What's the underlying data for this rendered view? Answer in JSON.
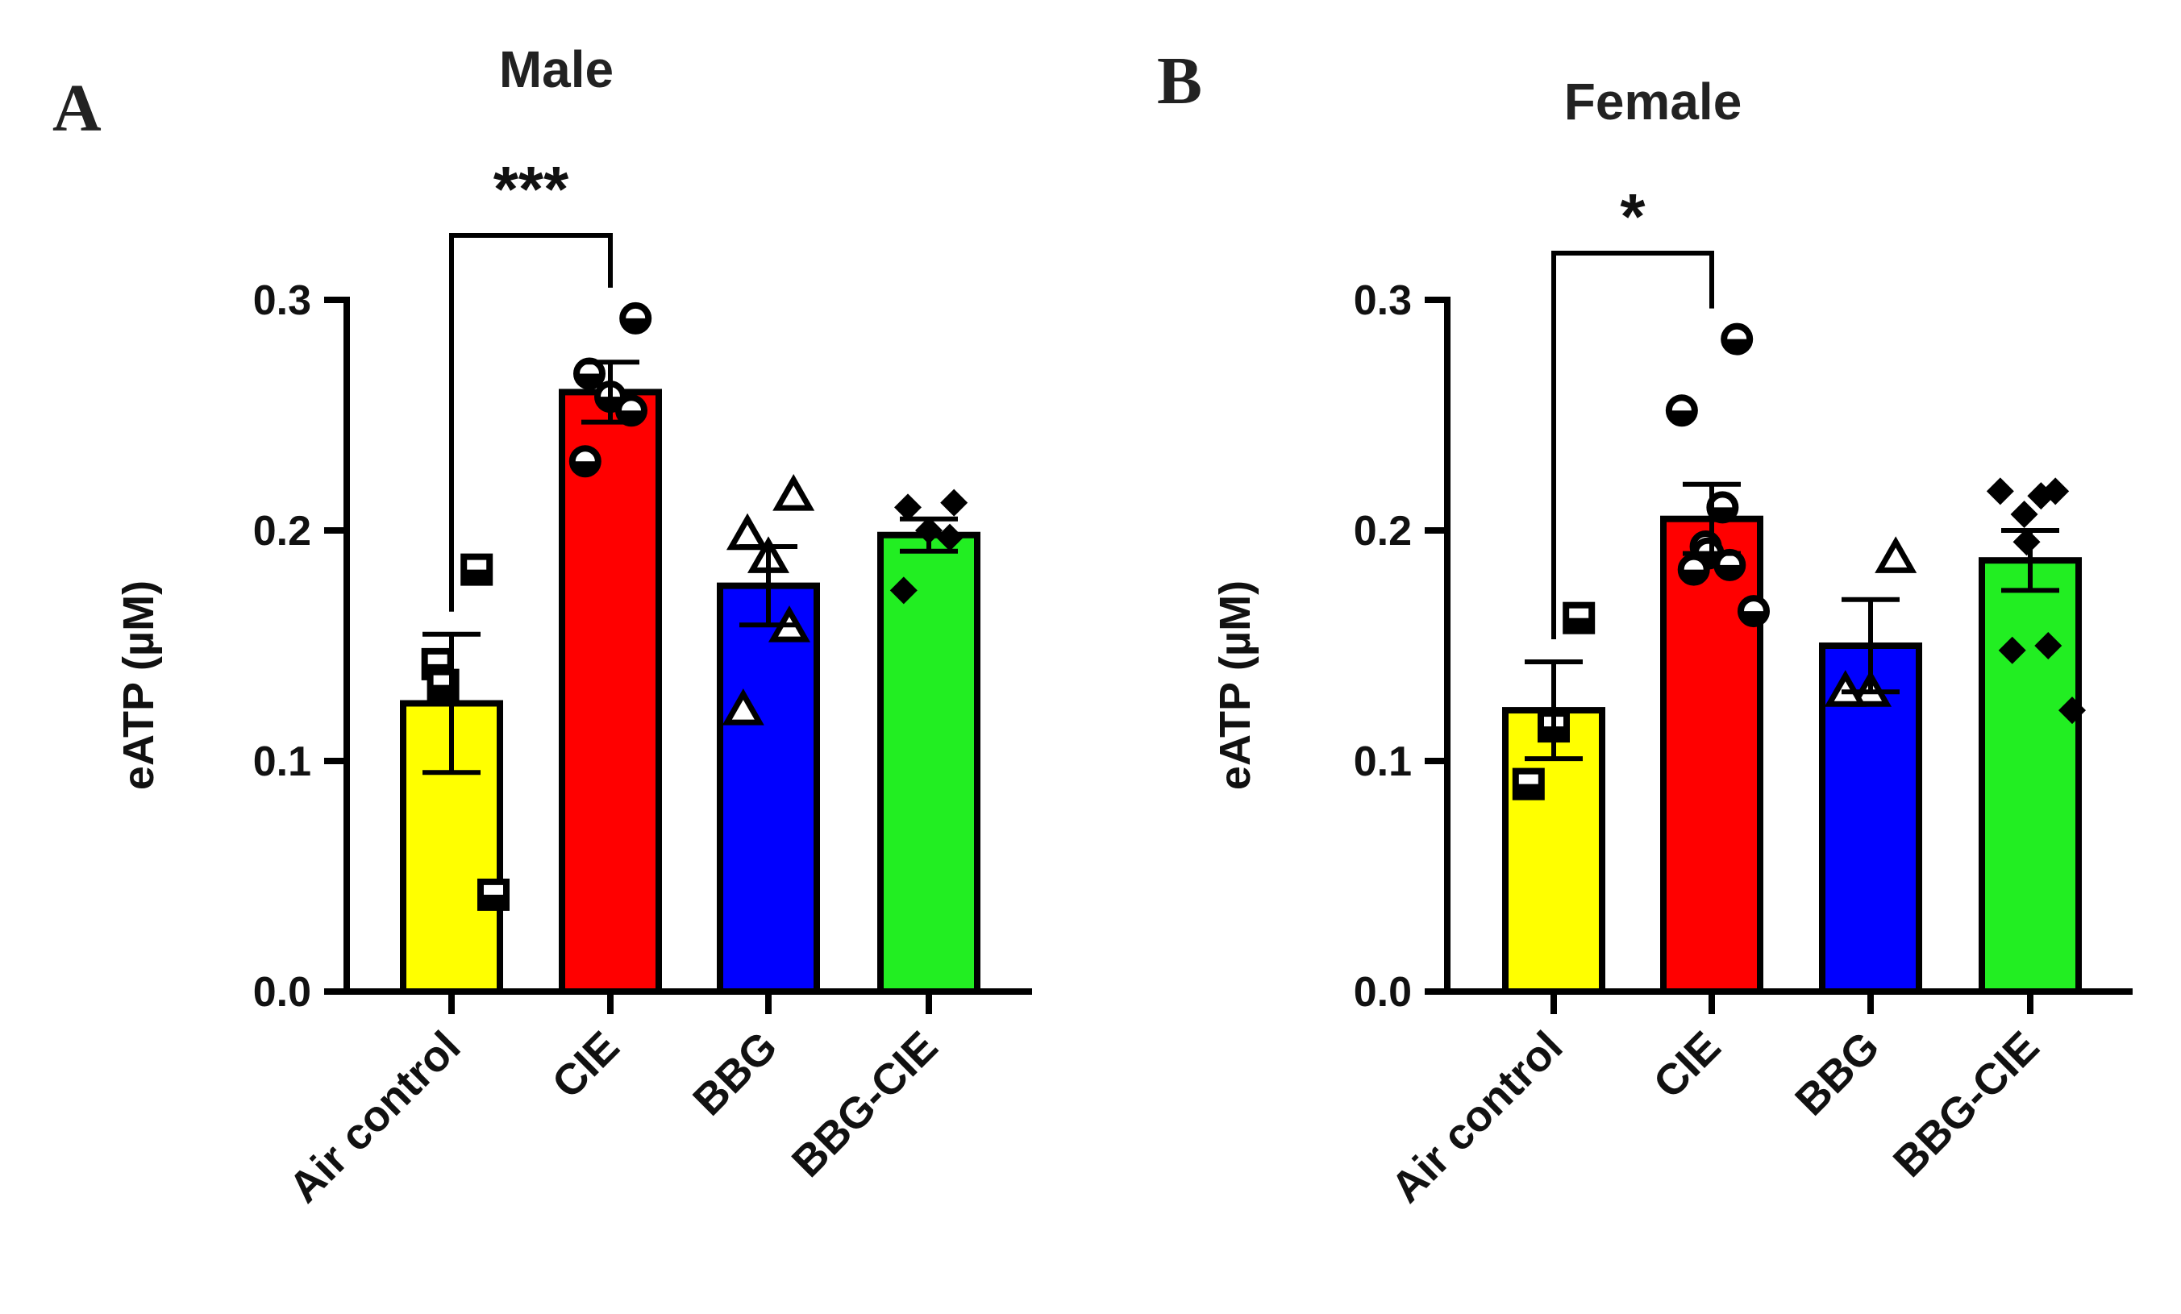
{
  "chart_data": [
    {
      "type": "bar",
      "panel_label": "A",
      "title": "Male",
      "ylabel": "eATP (µM)",
      "xlabel": "",
      "ylim": [
        0,
        0.3
      ],
      "yticks": [
        "0.0",
        "0.1",
        "0.2",
        "0.3"
      ],
      "categories": [
        "Air control",
        "CIE",
        "BBG",
        "BBG-CIE"
      ],
      "values": [
        0.125,
        0.26,
        0.176,
        0.198
      ],
      "sem": [
        0.03,
        0.013,
        0.017,
        0.007
      ],
      "colors": [
        "#ffff00",
        "#ff0000",
        "#0000ff",
        "#22ee22"
      ],
      "markers": [
        "square",
        "circle",
        "triangle",
        "diamond"
      ],
      "points": [
        [
          0.183,
          0.142,
          0.133,
          0.042
        ],
        [
          0.292,
          0.268,
          0.258,
          0.252,
          0.23
        ],
        [
          0.215,
          0.198,
          0.188,
          0.158,
          0.122
        ],
        [
          0.212,
          0.21,
          0.2,
          0.197,
          0.174
        ]
      ],
      "significance": [
        {
          "from": "Air control",
          "to": "CIE",
          "label": "***"
        }
      ]
    },
    {
      "type": "bar",
      "panel_label": "B",
      "title": "Female",
      "ylabel": "eATP (µM)",
      "xlabel": "",
      "ylim": [
        0,
        0.3
      ],
      "yticks": [
        "0.0",
        "0.1",
        "0.2",
        "0.3"
      ],
      "categories": [
        "Air control",
        "CIE",
        "BBG",
        "BBG-CIE"
      ],
      "values": [
        0.122,
        0.205,
        0.15,
        0.187
      ],
      "sem": [
        0.021,
        0.015,
        0.02,
        0.013
      ],
      "colors": [
        "#ffff00",
        "#ff0000",
        "#0000ff",
        "#22ee22"
      ],
      "markers": [
        "square",
        "circle",
        "triangle",
        "diamond"
      ],
      "points": [
        [
          0.162,
          0.115,
          0.09
        ],
        [
          0.283,
          0.252,
          0.21,
          0.193,
          0.19,
          0.185,
          0.183,
          0.165
        ],
        [
          0.188,
          0.13,
          0.13
        ],
        [
          0.217,
          0.217,
          0.215,
          0.207,
          0.195,
          0.15,
          0.148,
          0.122
        ]
      ],
      "significance": [
        {
          "from": "Air control",
          "to": "CIE",
          "label": "*"
        }
      ]
    }
  ]
}
